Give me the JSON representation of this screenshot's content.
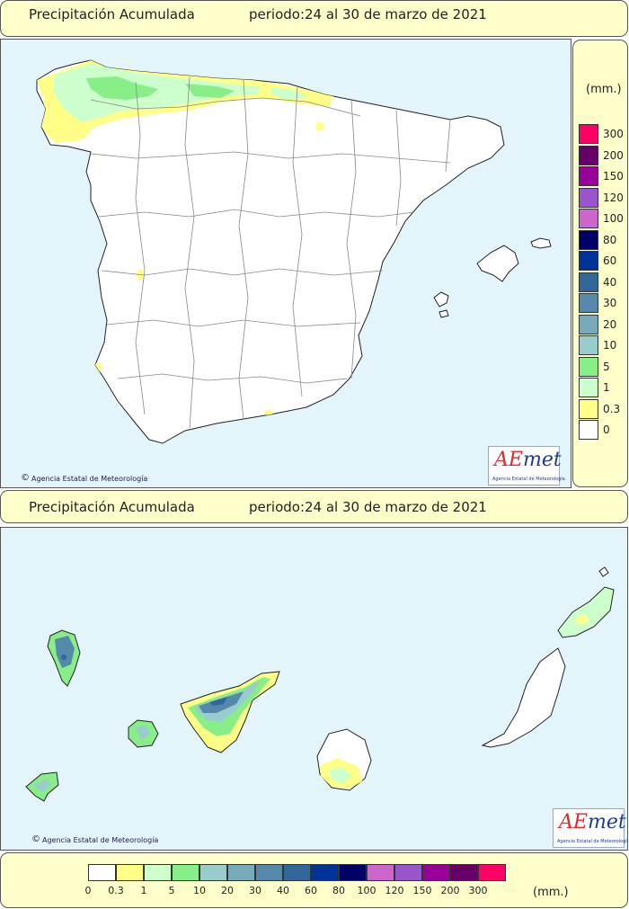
{
  "top_header": {
    "title": "Precipitación Acumulada",
    "period": "periodo:24 al 30 de marzo de 2021"
  },
  "bottom_header": {
    "title": "Precipitación Acumulada",
    "period": "periodo:24 al 30 de marzo de 2021"
  },
  "credit": "Agencia Estatal de Meteorología",
  "logo": {
    "text_a": "AE",
    "text_b": "met",
    "sub": "Agencia Estatal de Meteorología"
  },
  "legend": {
    "unit": "(mm.)",
    "labels": [
      "0",
      "0.3",
      "1",
      "5",
      "10",
      "20",
      "30",
      "40",
      "60",
      "80",
      "100",
      "120",
      "150",
      "200",
      "300"
    ],
    "colors": [
      "#ffffff",
      "#ffff88",
      "#ccffcc",
      "#88ee88",
      "#99cccc",
      "#77aabb",
      "#5588aa",
      "#336699",
      "#003399",
      "#000066",
      "#cc66cc",
      "#9955cc",
      "#990099",
      "#660066",
      "#ff0066"
    ]
  },
  "map_colors": {
    "sea": "#e4f4fb",
    "land": "#ffffff",
    "border": "#222222",
    "province_line": "#888888"
  }
}
